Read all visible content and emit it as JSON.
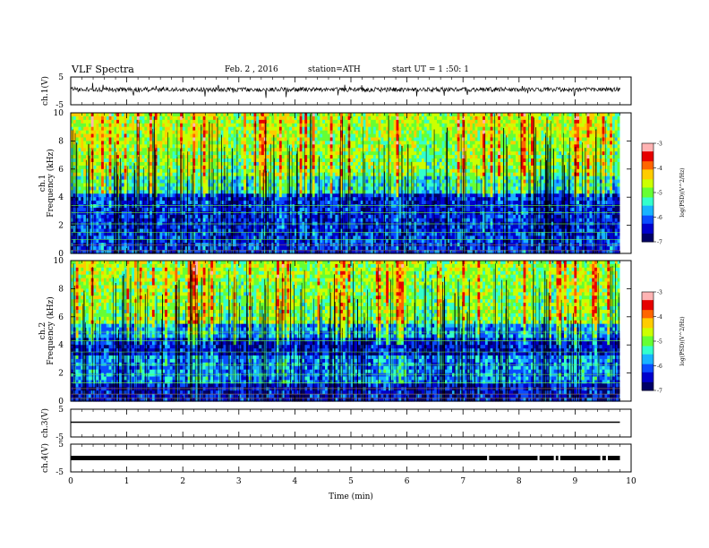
{
  "header": {
    "title": "VLF Spectra",
    "date": "Feb. 2 , 2016",
    "station": "station=ATH",
    "start": "start UT = 1 :50: 1"
  },
  "colorbar": {
    "label": "log(PSD)(V^2/Hz)",
    "ticks": [
      "-3",
      "-4",
      "-5",
      "-6",
      "-7"
    ],
    "colors": [
      "#000066",
      "#0000cc",
      "#0a4cff",
      "#19b3ff",
      "#33ffcc",
      "#66ff33",
      "#ccff00",
      "#ffcc00",
      "#ff6600",
      "#e60000",
      "#ffb3b3"
    ]
  },
  "chart_data": {
    "type": "heatmap",
    "xlabel": "Time (min)",
    "xlim": [
      0,
      10
    ],
    "xticks": [
      "0",
      "1",
      "2",
      "3",
      "4",
      "5",
      "6",
      "7",
      "8",
      "9",
      "10"
    ],
    "data_end_min": 9.8,
    "panels": [
      {
        "id": "ch1-waveform",
        "type": "line",
        "ylabel": "ch.1(V)",
        "yticks": [
          "5",
          "-5"
        ],
        "ylim": [
          -5,
          5
        ],
        "baseline": 0.5
      },
      {
        "id": "ch1-spectrogram",
        "type": "heatmap",
        "ylabel": "ch.1 Frequency (kHz)",
        "yticks": [
          "10",
          "8",
          "6",
          "4",
          "2",
          "0"
        ],
        "ylim": [
          0,
          10
        ],
        "zlim": [
          -7,
          -3
        ]
      },
      {
        "id": "ch2-spectrogram",
        "type": "heatmap",
        "ylabel": "ch.2 Frequency (kHz)",
        "yticks": [
          "10",
          "8",
          "6",
          "4",
          "2",
          "0"
        ],
        "ylim": [
          0,
          10
        ],
        "zlim": [
          -7,
          -3
        ]
      },
      {
        "id": "ch3-waveform",
        "type": "line",
        "ylabel": "ch.3(V)",
        "yticks": [
          "5",
          "-5"
        ],
        "ylim": [
          -5,
          5
        ],
        "baseline": 0
      },
      {
        "id": "ch4-waveform",
        "type": "line",
        "ylabel": "ch.4(V)",
        "yticks": [
          "5",
          "-5"
        ],
        "ylim": [
          -5,
          5
        ],
        "baseline": 0
      }
    ]
  }
}
